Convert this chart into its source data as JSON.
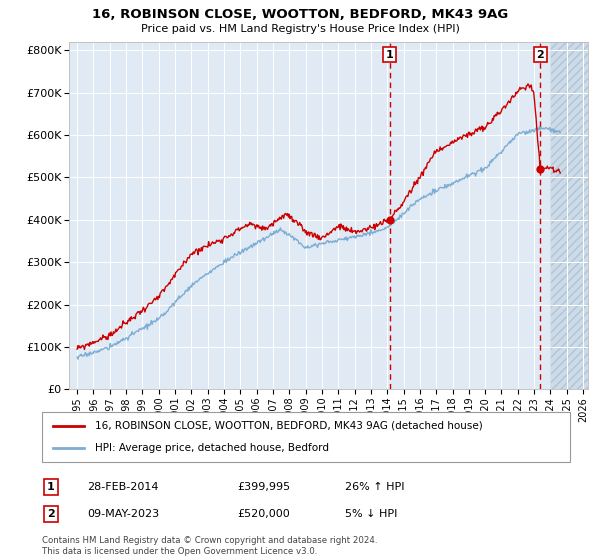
{
  "title": "16, ROBINSON CLOSE, WOOTTON, BEDFORD, MK43 9AG",
  "subtitle": "Price paid vs. HM Land Registry's House Price Index (HPI)",
  "legend_line1": "16, ROBINSON CLOSE, WOOTTON, BEDFORD, MK43 9AG (detached house)",
  "legend_line2": "HPI: Average price, detached house, Bedford",
  "sale1_date": "28-FEB-2014",
  "sale1_price": 399995,
  "sale1_label": "26% ↑ HPI",
  "sale2_date": "09-MAY-2023",
  "sale2_price": 520000,
  "sale2_label": "5% ↓ HPI",
  "footer": "Contains HM Land Registry data © Crown copyright and database right 2024.\nThis data is licensed under the Open Government Licence v3.0.",
  "line_color_red": "#cc0000",
  "line_color_blue": "#7eadd4",
  "background_plot": "#e0eaf4",
  "background_hatch": "#cddae8",
  "grid_color": "#ffffff",
  "ylim": [
    0,
    820000
  ],
  "yticks": [
    0,
    100000,
    200000,
    300000,
    400000,
    500000,
    600000,
    700000,
    800000
  ],
  "x_start_year": 1995,
  "x_end_year": 2026,
  "sale1_year": 2014.15,
  "sale2_year": 2023.37
}
